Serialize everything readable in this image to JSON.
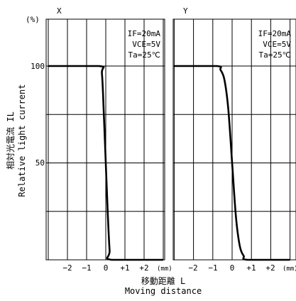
{
  "chart_data": [
    {
      "type": "line",
      "title": "X",
      "conditions": [
        "IF=20mA",
        "VCE=5V",
        "Ta=25℃"
      ],
      "x_ticks": [
        "−2",
        "−1",
        "0",
        "+1",
        "+2"
      ],
      "x_unit": "(mm)",
      "y_ticks": [
        "100",
        "50"
      ],
      "y_unit": "(%)",
      "xlim": [
        -3,
        3
      ],
      "ylim": [
        0,
        100
      ],
      "series": [
        {
          "x": [
            -3.0,
            -0.35,
            -0.2,
            -0.1,
            0.0,
            0.1,
            0.2,
            0.3,
            3.0
          ],
          "y": [
            100,
            100,
            96,
            75,
            50,
            25,
            5,
            0,
            0
          ]
        }
      ]
    },
    {
      "type": "line",
      "title": "Y",
      "conditions": [
        "IF=20mA",
        "VCE=5V",
        "Ta=25℃"
      ],
      "x_ticks": [
        "−2",
        "−1",
        "0",
        "+1",
        "+2"
      ],
      "x_unit": "(mm)",
      "y_ticks": [],
      "xlim": [
        -3,
        3
      ],
      "ylim": [
        0,
        100
      ],
      "series": [
        {
          "x": [
            -3.0,
            -0.8,
            -0.6,
            -0.4,
            -0.2,
            0.0,
            0.2,
            0.4,
            0.6,
            0.8,
            3.0
          ],
          "y": [
            100,
            100,
            98,
            93,
            78,
            50,
            22,
            7,
            2,
            0,
            0
          ]
        }
      ]
    }
  ],
  "ylabel": {
    "jp": "相対光電流 IL",
    "en": "Relative light current"
  },
  "xlabel": {
    "jp": "移動距離 L",
    "en": "Moving distance"
  }
}
